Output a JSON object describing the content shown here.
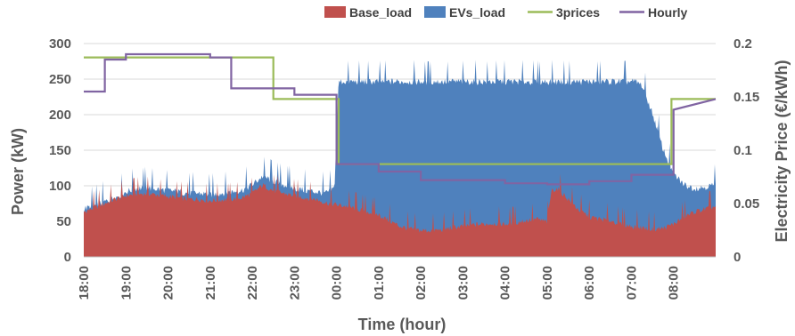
{
  "chart_data": {
    "type": "area",
    "xlabel": "Time (hour)",
    "ylabel": "Power (kW)",
    "y2label": "Electricity Price  (€/kWh)",
    "ylim": [
      0,
      300
    ],
    "y2lim": [
      0,
      0.2
    ],
    "yticks": [
      0,
      50,
      100,
      150,
      200,
      250,
      300
    ],
    "y2ticks": [
      "0",
      "0.05",
      "0.1",
      "0.15",
      "0.2"
    ],
    "y2tick_values": [
      0,
      0.05,
      0.1,
      0.15,
      0.2
    ],
    "xticks": [
      "18:00",
      "19:00",
      "20:00",
      "21:00",
      "22:00",
      "23:00",
      "00:00",
      "01:00",
      "02:00",
      "03:00",
      "04:00",
      "05:00",
      "06:00",
      "07:00",
      "08:00"
    ],
    "grid": true,
    "legend_position": "top",
    "series": [
      {
        "name": "Base_load",
        "kind": "area",
        "color": "#c0504d",
        "x": [
          0,
          0.25,
          0.5,
          0.75,
          1,
          1.25,
          1.5,
          1.75,
          2,
          2.25,
          2.5,
          2.75,
          3,
          3.25,
          3.5,
          3.75,
          4,
          4.25,
          4.5,
          4.75,
          5,
          5.25,
          5.5,
          5.75,
          6,
          6.25,
          6.5,
          6.75,
          7,
          7.25,
          7.5,
          7.75,
          8,
          8.25,
          8.5,
          8.75,
          9,
          9.25,
          9.5,
          9.75,
          10,
          10.25,
          10.5,
          10.75,
          11,
          11.1,
          11.25,
          11.5,
          11.75,
          12,
          12.25,
          12.5,
          12.75,
          13,
          13.25,
          13.5,
          13.75,
          14,
          14.25,
          14.5,
          14.75,
          15
        ],
        "values": [
          62,
          68,
          74,
          80,
          85,
          87,
          88,
          86,
          84,
          82,
          80,
          80,
          78,
          79,
          80,
          82,
          88,
          100,
          92,
          88,
          85,
          82,
          80,
          75,
          72,
          70,
          66,
          62,
          58,
          50,
          42,
          38,
          36,
          36,
          37,
          40,
          42,
          44,
          45,
          46,
          45,
          47,
          50,
          52,
          48,
          92,
          95,
          80,
          65,
          55,
          52,
          50,
          45,
          42,
          40,
          38,
          39,
          45,
          55,
          62,
          66,
          70
        ]
      },
      {
        "name": "EVs_load",
        "kind": "area",
        "color": "#4f81bd",
        "x": [
          0,
          0.25,
          0.5,
          0.75,
          1,
          1.25,
          1.5,
          1.75,
          2,
          2.25,
          2.5,
          2.75,
          3,
          3.25,
          3.5,
          3.75,
          4,
          4.25,
          4.5,
          4.75,
          5,
          5.25,
          5.5,
          5.75,
          5.95,
          6.05,
          6.5,
          7,
          7.5,
          8,
          8.5,
          9,
          9.5,
          10,
          10.5,
          11,
          11.5,
          12,
          12.5,
          13,
          13.1,
          13.25,
          13.5,
          13.75,
          14,
          14.25,
          14.5,
          14.75,
          15
        ],
        "values": [
          66,
          70,
          76,
          82,
          90,
          95,
          96,
          94,
          92,
          90,
          88,
          88,
          86,
          88,
          90,
          92,
          100,
          112,
          105,
          100,
          95,
          92,
          90,
          88,
          95,
          245,
          245,
          245,
          245,
          245,
          245,
          245,
          245,
          245,
          245,
          245,
          245,
          245,
          245,
          245,
          245,
          240,
          200,
          150,
          115,
          100,
          95,
          97,
          100
        ]
      },
      {
        "name": "3prices",
        "kind": "step",
        "color": "#9bbb59",
        "axis": "right",
        "x": [
          0,
          4.5,
          4.5,
          6.05,
          6.05,
          13.95,
          13.95,
          15
        ],
        "values": [
          0.187,
          0.187,
          0.148,
          0.148,
          0.087,
          0.087,
          0.148,
          0.148
        ]
      },
      {
        "name": "Hourly",
        "kind": "step",
        "color": "#8064a2",
        "axis": "right",
        "x": [
          0,
          0.5,
          0.5,
          1,
          1,
          3,
          3,
          3.5,
          3.5,
          5,
          5,
          6,
          6,
          7,
          7,
          8,
          8,
          10,
          10,
          11,
          11,
          12,
          12,
          13,
          13,
          14,
          14,
          15
        ],
        "values": [
          0.155,
          0.155,
          0.185,
          0.185,
          0.19,
          0.19,
          0.187,
          0.187,
          0.158,
          0.158,
          0.152,
          0.152,
          0.087,
          0.087,
          0.08,
          0.08,
          0.072,
          0.072,
          0.069,
          0.069,
          0.068,
          0.068,
          0.071,
          0.071,
          0.077,
          0.077,
          0.138,
          0.148
        ]
      }
    ]
  }
}
